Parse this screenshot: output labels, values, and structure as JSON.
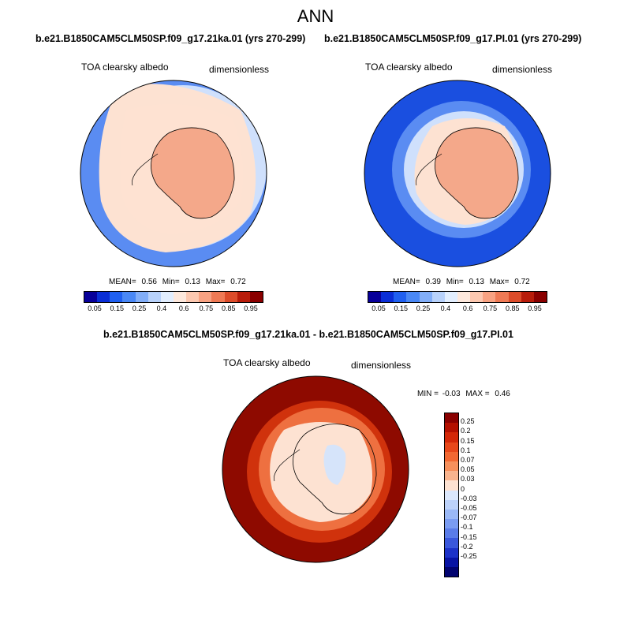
{
  "main_title": "ANN",
  "panels": [
    {
      "case_title": "b.e21.B1850CAM5CLM50SP.f09_g17.21ka.01 (yrs 270-299)",
      "variable": "TOA clearsky albedo",
      "units": "dimensionless",
      "stats": {
        "mean_label": "MEAN=",
        "mean": "0.56",
        "min_label": "Min=",
        "min": "0.13",
        "max_label": "Max=",
        "max": "0.72"
      }
    },
    {
      "case_title": "b.e21.B1850CAM5CLM50SP.f09_g17.PI.01 (yrs 270-299)",
      "variable": "TOA clearsky albedo",
      "units": "dimensionless",
      "stats": {
        "mean_label": "MEAN=",
        "mean": "0.39",
        "min_label": "Min=",
        "min": "0.13",
        "max_label": "Max=",
        "max": "0.72"
      }
    }
  ],
  "diff_panel": {
    "case_title": "b.e21.B1850CAM5CLM50SP.f09_g17.21ka.01 - b.e21.B1850CAM5CLM50SP.f09_g17.PI.01",
    "variable": "TOA clearsky albedo",
    "units": "dimensionless",
    "min_label": "MIN =",
    "min": "-0.03",
    "max_label": "MAX =",
    "max": "0.46"
  },
  "colorbar_abs": {
    "colors": [
      "#08009a",
      "#0a2ed6",
      "#2060f0",
      "#4a88f5",
      "#82aef8",
      "#b8d2fb",
      "#e2eefe",
      "#fde8dc",
      "#fcc8b0",
      "#f8a282",
      "#ef7a55",
      "#dc4c2a",
      "#b81c0a",
      "#8a0000"
    ],
    "labels": [
      "0.05",
      "0.15",
      "0.25",
      "0.4",
      "0.6",
      "0.75",
      "0.85",
      "0.95"
    ]
  },
  "colorbar_diff": {
    "colors": [
      "#8a0000",
      "#b41000",
      "#d42808",
      "#e8481a",
      "#f26832",
      "#f6905c",
      "#f9b48e",
      "#fde2d2",
      "#dce8fc",
      "#bcd2fa",
      "#9ab8f6",
      "#7a9cf2",
      "#5a7ce8",
      "#3a58dc",
      "#1c32c8",
      "#0814a4",
      "#020470"
    ],
    "labels": [
      "0.25",
      "0.2",
      "0.15",
      "0.1",
      "0.07",
      "0.05",
      "0.03",
      "0",
      "-0.03",
      "-0.05",
      "-0.07",
      "-0.1",
      "-0.15",
      "-0.2",
      "-0.25"
    ]
  },
  "map_colors": {
    "ocean_far_blue": "#1a4fe0",
    "ocean_mid_blue": "#5a8cf2",
    "ocean_light_blue": "#cfe0fc",
    "sea_ice_peach": "#fde2d2",
    "antarctica_salmon": "#f4a88a",
    "diff_dark_red": "#8e0a00",
    "diff_red": "#d0320c",
    "diff_orange": "#ee7040",
    "diff_light": "#fde2d2",
    "diff_blue_patch": "#d6e4fa"
  }
}
